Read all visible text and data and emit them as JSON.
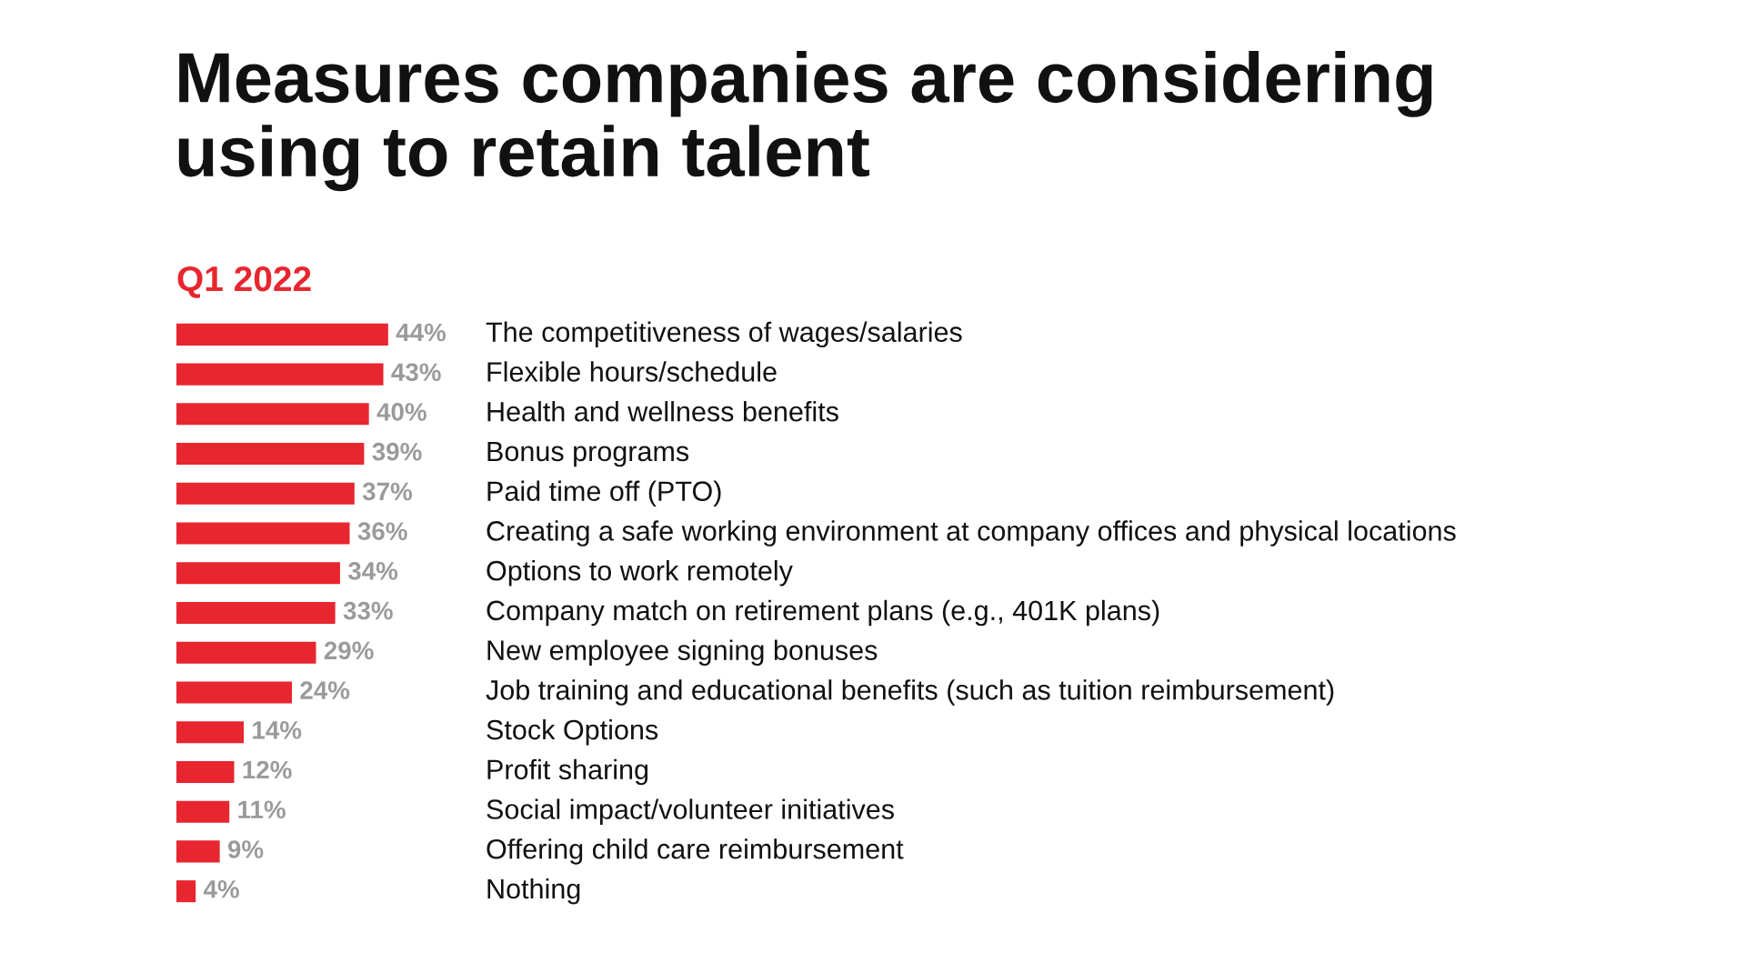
{
  "chart_data": {
    "type": "bar",
    "orientation": "horizontal",
    "title": "Measures companies are considering\nusing to retain talent",
    "subtitle": "Q1 2022",
    "categories": [
      "The competitiveness of wages/salaries",
      "Flexible hours/schedule",
      "Health and wellness benefits",
      "Bonus programs",
      "Paid time off (PTO)",
      "Creating a safe working environment at company offices and physical locations",
      "Options to work remotely",
      "Company match on retirement plans (e.g., 401K plans)",
      "New employee signing bonuses",
      "Job training and educational benefits (such as tuition reimbursement)",
      "Stock Options",
      "Profit sharing",
      "Social impact/volunteer initiatives",
      "Offering child care reimbursement",
      "Nothing"
    ],
    "values": [
      44,
      43,
      40,
      39,
      37,
      36,
      34,
      33,
      29,
      24,
      14,
      12,
      11,
      9,
      4
    ],
    "value_labels": [
      "44%",
      "43%",
      "40%",
      "39%",
      "37%",
      "36%",
      "34%",
      "33%",
      "29%",
      "24%",
      "14%",
      "12%",
      "11%",
      "9%",
      "4%"
    ],
    "color": "#e8262f"
  }
}
